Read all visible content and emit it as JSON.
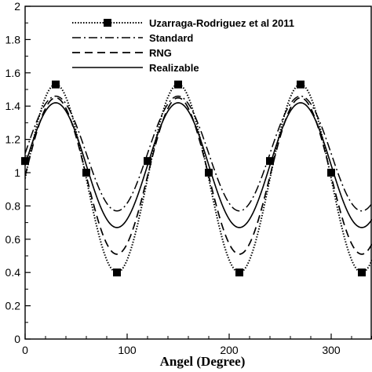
{
  "chart_data": {
    "type": "line",
    "title": "",
    "xlabel": "Angel (Degree)",
    "ylabel": "",
    "xlim": [
      0,
      340
    ],
    "ylim": [
      0,
      2
    ],
    "xticks": [
      "0",
      "100",
      "200",
      "300"
    ],
    "xtick_values": [
      0,
      100,
      200,
      300
    ],
    "yticks": [
      "0",
      "0.2",
      "0.4",
      "0.6",
      "0.8",
      "1",
      "1.2",
      "1.4",
      "1.6",
      "1.8",
      "2"
    ],
    "ytick_values": [
      0,
      0.2,
      0.4,
      0.6,
      0.8,
      1.0,
      1.2,
      1.4,
      1.6,
      1.8,
      2.0
    ],
    "grid": false,
    "legend_position": "top-right",
    "period_deg": 120,
    "series": [
      {
        "name": "Uzarraga-Rodriguez et al 2011",
        "style": "dotted-square-markers",
        "mean": 0.965,
        "amplitude": 0.565,
        "markers_x": [
          0,
          30,
          60,
          90,
          120,
          150,
          180,
          210,
          240,
          270,
          300,
          330
        ],
        "markers_y": [
          1.07,
          1.53,
          1.0,
          0.4,
          1.07,
          1.53,
          1.0,
          0.4,
          1.07,
          1.53,
          1.0,
          0.4
        ]
      },
      {
        "name": "Standard",
        "style": "dash-dot",
        "mean": 1.115,
        "amplitude": 0.345
      },
      {
        "name": "RNG",
        "style": "dashed",
        "mean": 0.98,
        "amplitude": 0.47
      },
      {
        "name": "Realizable",
        "style": "solid",
        "mean": 1.045,
        "amplitude": 0.375
      }
    ]
  }
}
